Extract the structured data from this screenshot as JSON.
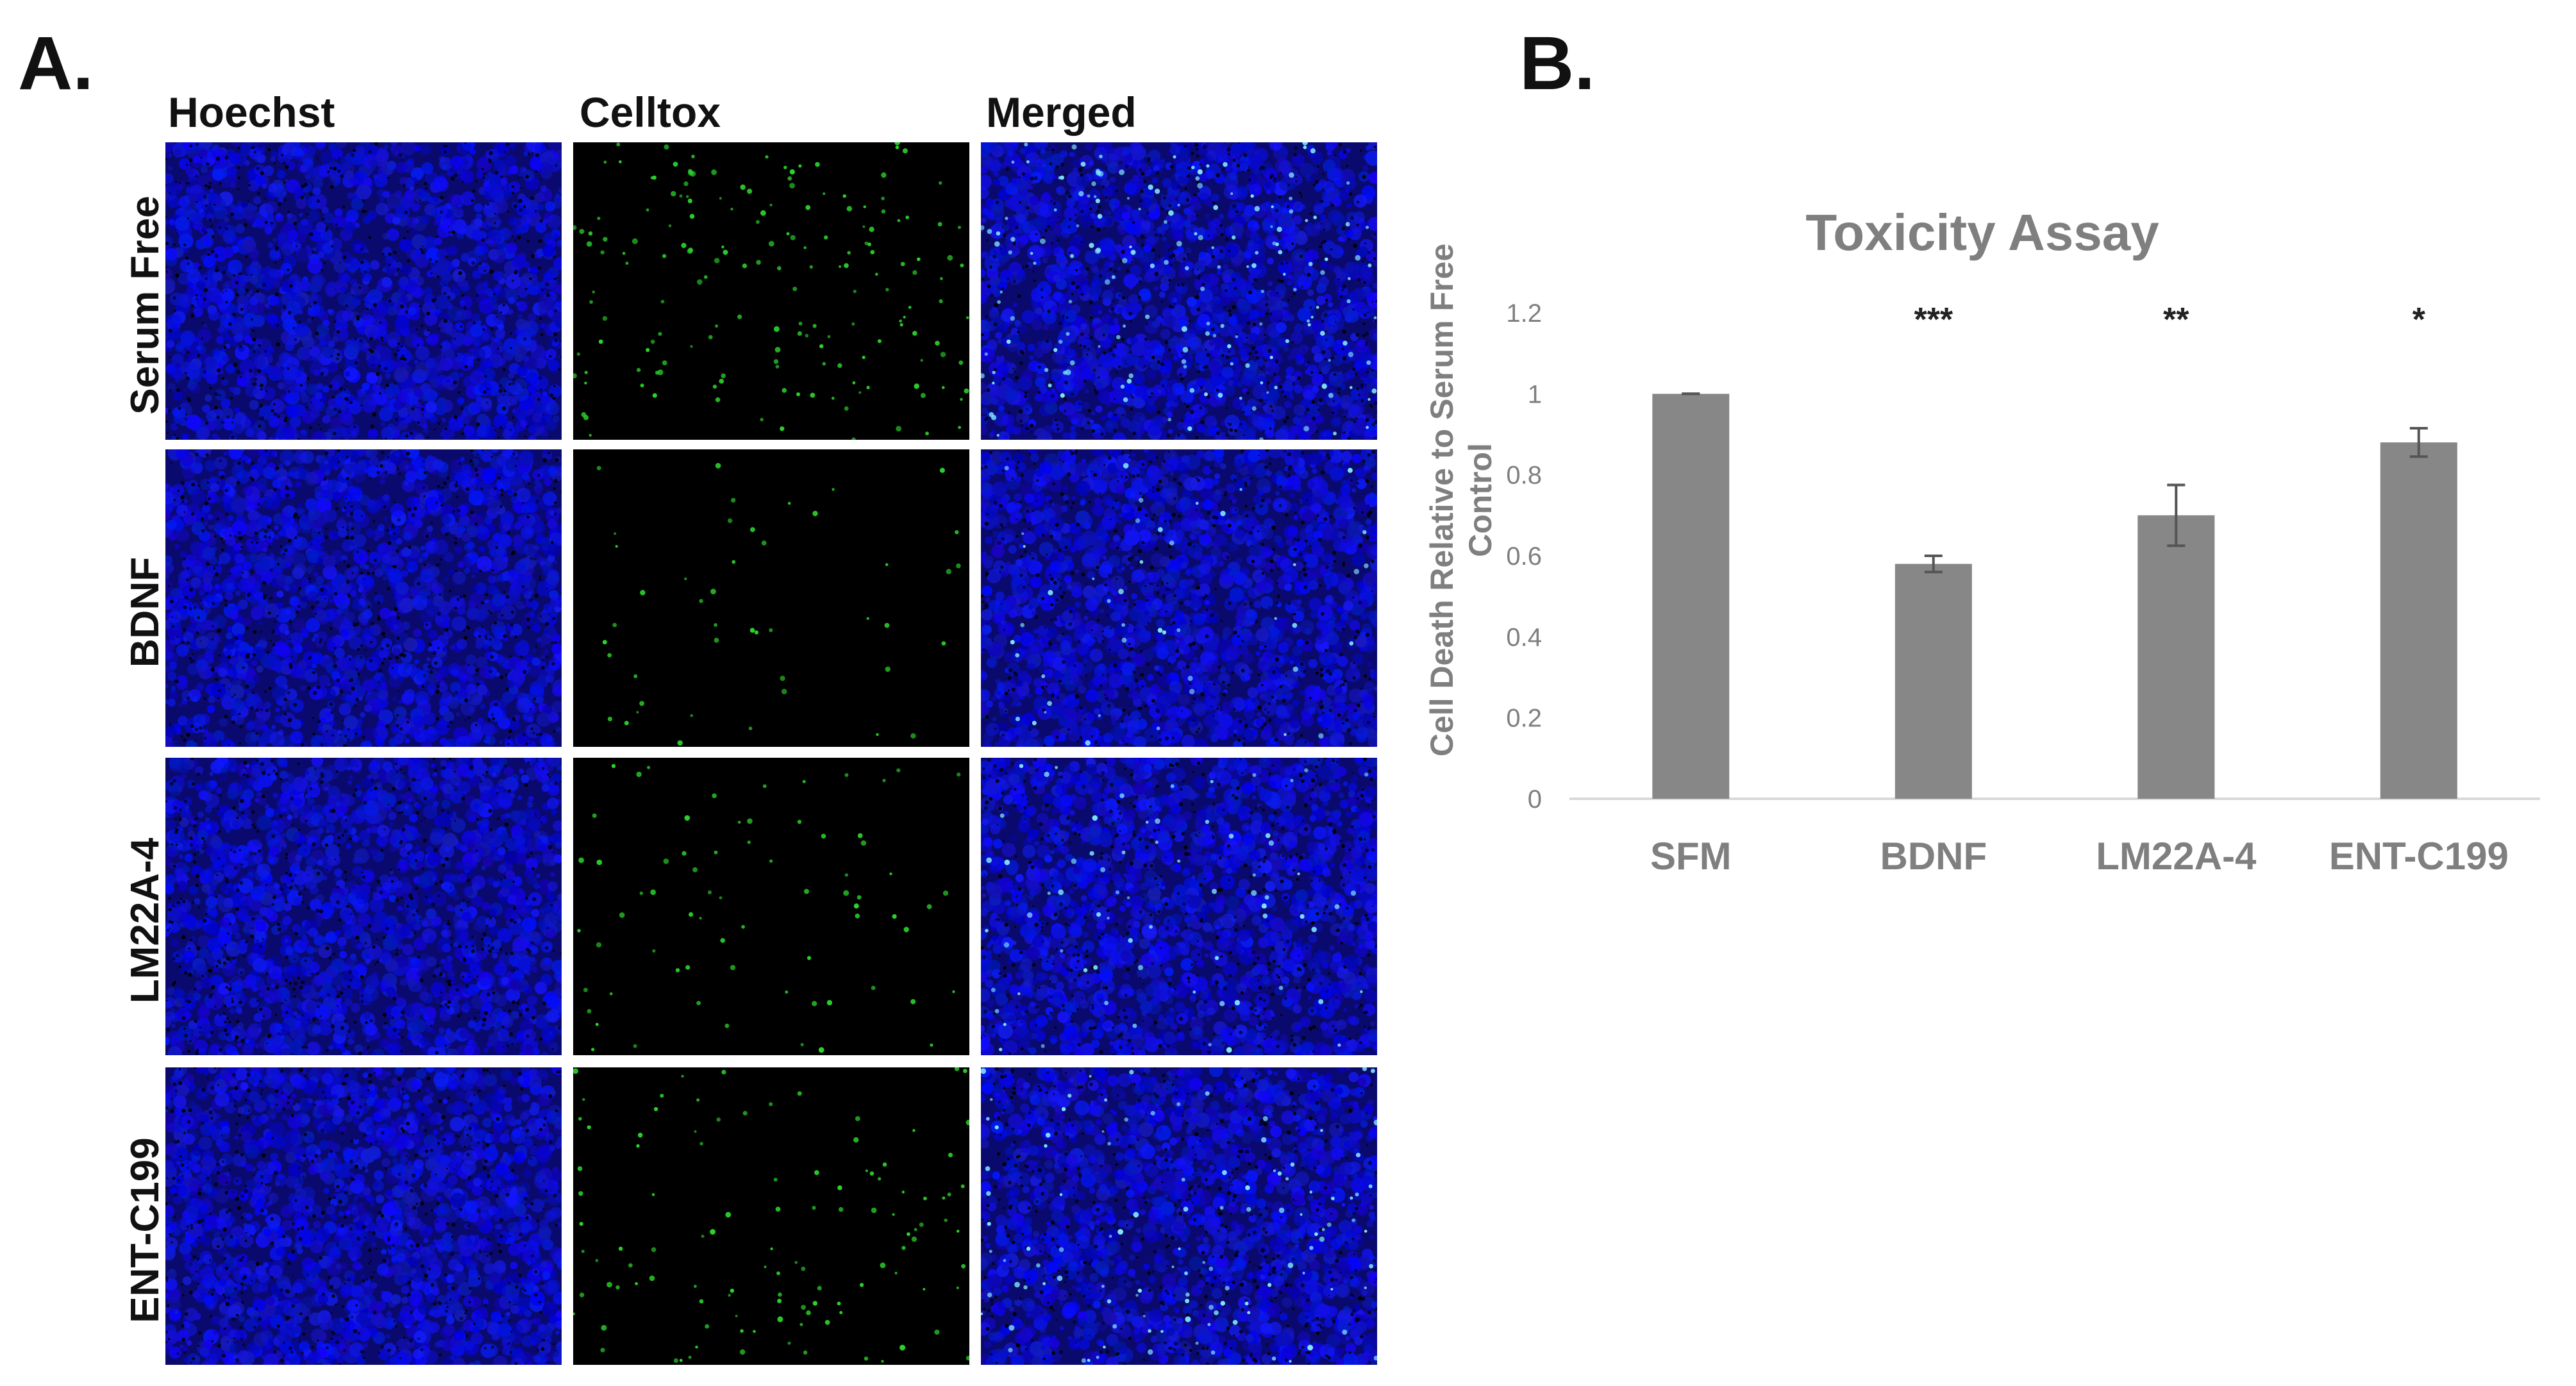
{
  "panel_a": {
    "letter": "A.",
    "columns": [
      "Hoechst",
      "Celltox",
      "Merged"
    ],
    "rows": [
      "Serum Free",
      "BDNF",
      "LM22A-4",
      "ENT-C199"
    ]
  },
  "panel_b": {
    "letter": "B."
  },
  "chart_data": {
    "type": "bar",
    "title": "Toxicity Assay",
    "ylabel": "Cell Death Relative to Serum Free Control",
    "xlabel": "",
    "categories": [
      "SFM",
      "BDNF",
      "LM22A-4",
      "ENT-C199"
    ],
    "values": [
      1.0,
      0.58,
      0.7,
      0.88
    ],
    "errors": [
      0.0,
      0.02,
      0.075,
      0.035
    ],
    "significance": [
      "",
      "***",
      "**",
      "*"
    ],
    "ylim": [
      0,
      1.2
    ],
    "yticks": [
      "0",
      "0.2",
      "0.4",
      "0.6",
      "0.8",
      "1",
      "1.2"
    ],
    "grid": false,
    "bar_color": "#878787",
    "text_color": "#808080"
  }
}
